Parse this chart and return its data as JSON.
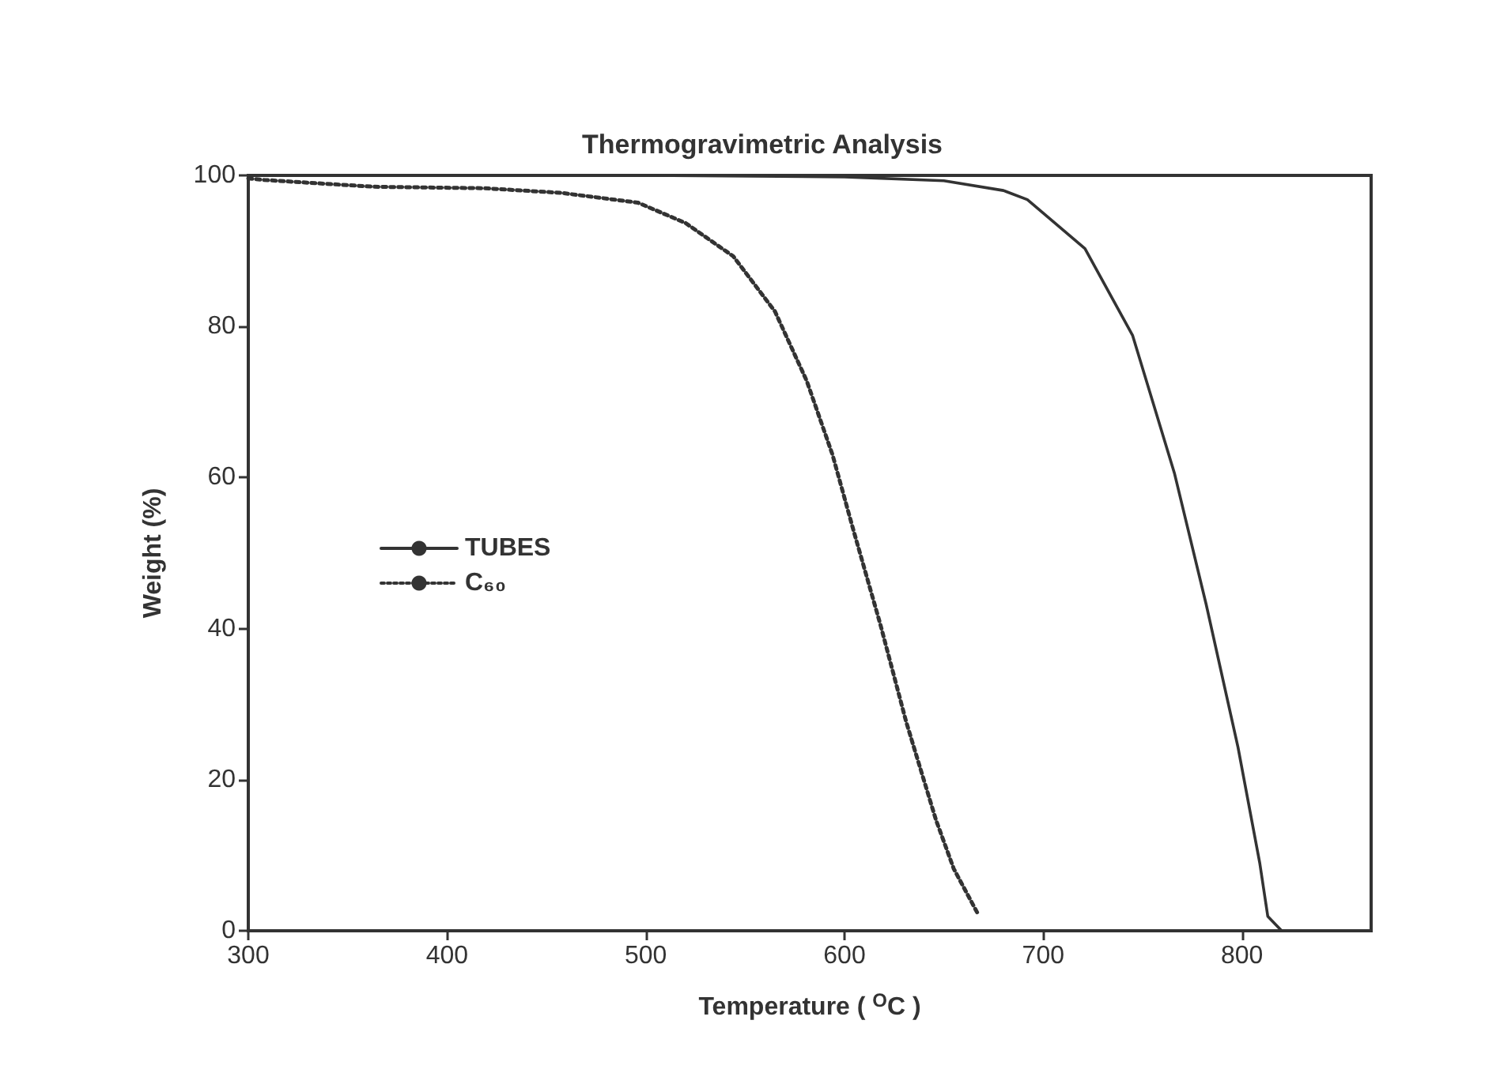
{
  "chart_data": {
    "type": "line",
    "title": "Thermogravimetric Analysis",
    "xlabel": "Temperature ( $^{O}$C )",
    "ylabel": "Weight (%)",
    "xlim": [
      300,
      865
    ],
    "xticks": [
      300,
      400,
      500,
      600,
      700,
      800
    ],
    "ylim": [
      0,
      100
    ],
    "yticks": [
      0,
      20,
      40,
      60,
      80,
      100
    ],
    "grid": false,
    "legend": "left",
    "marker": "none",
    "series": [
      {
        "name": "TUBES",
        "color": "#333333",
        "line_style": "solid",
        "x": [
          300,
          400,
          500,
          600,
          650,
          680,
          692,
          721,
          745,
          766,
          782,
          798,
          809,
          813,
          817,
          820
        ],
        "values": [
          100,
          100,
          100,
          99.8,
          99.3,
          98,
          96.8,
          90.3,
          78.8,
          60.6,
          43.2,
          24.3,
          8.9,
          1.9,
          0.8,
          0
        ]
      },
      {
        "name": "C₆₀",
        "color": "#333333",
        "line_style": "dotted",
        "x": [
          300,
          308,
          363,
          419,
          457,
          496,
          520,
          544,
          565,
          581,
          594,
          604,
          618,
          631,
          646,
          655,
          667
        ],
        "values": [
          99.6,
          99.4,
          98.5,
          98.3,
          97.7,
          96.4,
          93.7,
          89.3,
          82,
          72.8,
          63,
          53.5,
          40.6,
          27.7,
          14.7,
          8.2,
          2.3
        ]
      }
    ]
  }
}
